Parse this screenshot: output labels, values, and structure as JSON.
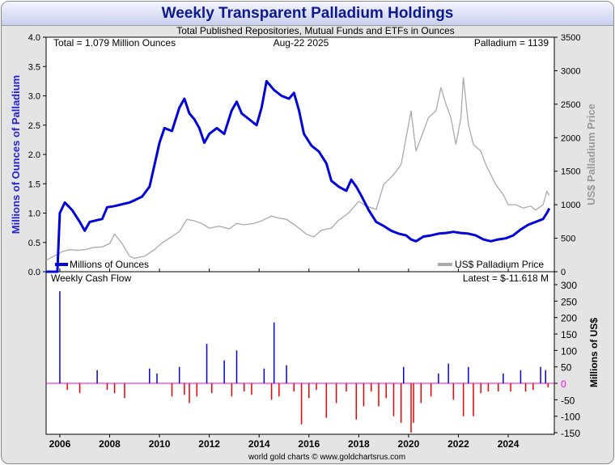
{
  "title": "Weekly Transparent Palladium Holdings",
  "subtitle": "Total Published Repositories, Mutual Funds and ETFs in Ounces",
  "info": {
    "total": "Total = 1.079 Million Ounces",
    "date": "Aug-22  2025",
    "price": "Palladium = 1139",
    "cashflow_title": "Weekly Cash Flow",
    "cashflow_latest": "Latest = $-11.618 M",
    "footer": "world gold charts © www.goldchartsrus.com"
  },
  "colors": {
    "holdings": "#0000dd",
    "price": "#aaaaaa",
    "inflow": "#0000ee",
    "outflow": "#ee0000",
    "zero_label": "#ff00ff"
  },
  "chart_data": [
    {
      "type": "line",
      "title": "Weekly Transparent Palladium Holdings",
      "ylabel": "Millions of Ounces of Palladium",
      "y2label": "US$ Palladium Price",
      "ylim": [
        0,
        4.0
      ],
      "y2lim": [
        0,
        3500
      ],
      "xlim": [
        2005.45,
        2025.85
      ],
      "x_ticks": [
        "2006",
        "2008",
        "2010",
        "2012",
        "2014",
        "2016",
        "2018",
        "2020",
        "2022",
        "2024"
      ],
      "y_ticks": [
        "0.0",
        "0.5",
        "1.0",
        "1.5",
        "2.0",
        "2.5",
        "3.0",
        "3.5",
        "4.0"
      ],
      "y2_ticks": [
        "0",
        "500",
        "1000",
        "1500",
        "2000",
        "2500",
        "3000",
        "3500"
      ],
      "legend": [
        "Millions of Ounces",
        "US$ Palladium Price"
      ],
      "series": [
        {
          "name": "Millions of Ounces",
          "axis": "left",
          "points": [
            [
              2005.45,
              0.0
            ],
            [
              2005.9,
              0.0
            ],
            [
              2006.0,
              1.0
            ],
            [
              2006.2,
              1.18
            ],
            [
              2006.5,
              1.05
            ],
            [
              2006.8,
              0.85
            ],
            [
              2007.0,
              0.7
            ],
            [
              2007.2,
              0.85
            ],
            [
              2007.5,
              0.88
            ],
            [
              2007.7,
              0.9
            ],
            [
              2007.9,
              1.1
            ],
            [
              2008.2,
              1.12
            ],
            [
              2008.5,
              1.15
            ],
            [
              2008.8,
              1.18
            ],
            [
              2009.0,
              1.22
            ],
            [
              2009.3,
              1.28
            ],
            [
              2009.6,
              1.45
            ],
            [
              2009.8,
              1.82
            ],
            [
              2010.0,
              2.2
            ],
            [
              2010.2,
              2.45
            ],
            [
              2010.5,
              2.4
            ],
            [
              2010.8,
              2.8
            ],
            [
              2011.0,
              2.95
            ],
            [
              2011.2,
              2.7
            ],
            [
              2011.4,
              2.6
            ],
            [
              2011.6,
              2.45
            ],
            [
              2011.8,
              2.2
            ],
            [
              2012.0,
              2.35
            ],
            [
              2012.3,
              2.45
            ],
            [
              2012.6,
              2.35
            ],
            [
              2012.9,
              2.75
            ],
            [
              2013.1,
              2.9
            ],
            [
              2013.3,
              2.7
            ],
            [
              2013.6,
              2.6
            ],
            [
              2013.9,
              2.5
            ],
            [
              2014.1,
              2.8
            ],
            [
              2014.3,
              3.25
            ],
            [
              2014.6,
              3.1
            ],
            [
              2014.9,
              3.0
            ],
            [
              2015.2,
              2.95
            ],
            [
              2015.4,
              3.05
            ],
            [
              2015.6,
              2.75
            ],
            [
              2015.8,
              2.35
            ],
            [
              2016.1,
              2.15
            ],
            [
              2016.4,
              2.05
            ],
            [
              2016.7,
              1.85
            ],
            [
              2016.9,
              1.55
            ],
            [
              2017.2,
              1.45
            ],
            [
              2017.5,
              1.38
            ],
            [
              2017.7,
              1.57
            ],
            [
              2017.9,
              1.45
            ],
            [
              2018.1,
              1.3
            ],
            [
              2018.4,
              1.05
            ],
            [
              2018.7,
              0.85
            ],
            [
              2019.0,
              0.78
            ],
            [
              2019.3,
              0.7
            ],
            [
              2019.6,
              0.65
            ],
            [
              2019.9,
              0.62
            ],
            [
              2020.1,
              0.55
            ],
            [
              2020.3,
              0.52
            ],
            [
              2020.6,
              0.6
            ],
            [
              2020.9,
              0.62
            ],
            [
              2021.2,
              0.65
            ],
            [
              2021.5,
              0.66
            ],
            [
              2021.8,
              0.68
            ],
            [
              2022.1,
              0.66
            ],
            [
              2022.4,
              0.65
            ],
            [
              2022.7,
              0.62
            ],
            [
              2023.0,
              0.55
            ],
            [
              2023.3,
              0.52
            ],
            [
              2023.6,
              0.55
            ],
            [
              2023.9,
              0.57
            ],
            [
              2024.2,
              0.62
            ],
            [
              2024.5,
              0.72
            ],
            [
              2024.8,
              0.8
            ],
            [
              2025.1,
              0.85
            ],
            [
              2025.4,
              0.9
            ],
            [
              2025.55,
              1.0
            ],
            [
              2025.65,
              1.08
            ]
          ]
        },
        {
          "name": "US$ Palladium Price",
          "axis": "right",
          "points": [
            [
              2005.45,
              170
            ],
            [
              2005.8,
              240
            ],
            [
              2006.1,
              300
            ],
            [
              2006.4,
              330
            ],
            [
              2006.7,
              320
            ],
            [
              2007.0,
              330
            ],
            [
              2007.3,
              360
            ],
            [
              2007.7,
              370
            ],
            [
              2008.0,
              420
            ],
            [
              2008.2,
              560
            ],
            [
              2008.5,
              420
            ],
            [
              2008.8,
              230
            ],
            [
              2009.0,
              200
            ],
            [
              2009.4,
              230
            ],
            [
              2009.8,
              330
            ],
            [
              2010.1,
              430
            ],
            [
              2010.4,
              500
            ],
            [
              2010.8,
              600
            ],
            [
              2011.1,
              780
            ],
            [
              2011.4,
              760
            ],
            [
              2011.7,
              720
            ],
            [
              2012.0,
              650
            ],
            [
              2012.4,
              680
            ],
            [
              2012.8,
              640
            ],
            [
              2013.1,
              720
            ],
            [
              2013.4,
              700
            ],
            [
              2013.8,
              720
            ],
            [
              2014.1,
              760
            ],
            [
              2014.5,
              830
            ],
            [
              2014.8,
              800
            ],
            [
              2015.1,
              780
            ],
            [
              2015.5,
              680
            ],
            [
              2015.9,
              560
            ],
            [
              2016.2,
              520
            ],
            [
              2016.5,
              620
            ],
            [
              2016.9,
              650
            ],
            [
              2017.2,
              770
            ],
            [
              2017.6,
              880
            ],
            [
              2018.0,
              1050
            ],
            [
              2018.3,
              980
            ],
            [
              2018.7,
              930
            ],
            [
              2019.0,
              1300
            ],
            [
              2019.4,
              1450
            ],
            [
              2019.7,
              1600
            ],
            [
              2019.95,
              2100
            ],
            [
              2020.1,
              2400
            ],
            [
              2020.3,
              1800
            ],
            [
              2020.5,
              2000
            ],
            [
              2020.8,
              2300
            ],
            [
              2021.1,
              2400
            ],
            [
              2021.3,
              2750
            ],
            [
              2021.5,
              2500
            ],
            [
              2021.7,
              2300
            ],
            [
              2021.9,
              1900
            ],
            [
              2022.1,
              2300
            ],
            [
              2022.2,
              2900
            ],
            [
              2022.4,
              2200
            ],
            [
              2022.6,
              1900
            ],
            [
              2022.9,
              1800
            ],
            [
              2023.1,
              1600
            ],
            [
              2023.3,
              1450
            ],
            [
              2023.5,
              1300
            ],
            [
              2023.8,
              1150
            ],
            [
              2024.0,
              1000
            ],
            [
              2024.3,
              1000
            ],
            [
              2024.6,
              950
            ],
            [
              2024.9,
              980
            ],
            [
              2025.1,
              920
            ],
            [
              2025.4,
              1000
            ],
            [
              2025.55,
              1200
            ],
            [
              2025.65,
              1139
            ]
          ]
        }
      ]
    },
    {
      "type": "bar",
      "title": "Weekly Cash Flow",
      "ylabel": "Millions of US$",
      "ylim": [
        -150,
        300
      ],
      "y_ticks": [
        "300",
        "250",
        "200",
        "150",
        "100",
        "50",
        "0",
        "-50",
        "-100",
        "-150"
      ],
      "x_ticks": [
        "2006",
        "2008",
        "2010",
        "2012",
        "2014",
        "2016",
        "2018",
        "2020",
        "2022",
        "2024"
      ],
      "series": [
        {
          "name": "Weekly Cash Flow",
          "points": [
            [
              2006.0,
              280
            ],
            [
              2006.3,
              -20
            ],
            [
              2006.8,
              -30
            ],
            [
              2007.5,
              40
            ],
            [
              2007.9,
              -20
            ],
            [
              2008.2,
              -30
            ],
            [
              2008.6,
              -45
            ],
            [
              2009.6,
              45
            ],
            [
              2009.9,
              30
            ],
            [
              2010.5,
              -40
            ],
            [
              2010.8,
              50
            ],
            [
              2011.0,
              -35
            ],
            [
              2011.2,
              -60
            ],
            [
              2011.5,
              -40
            ],
            [
              2011.9,
              120
            ],
            [
              2012.1,
              -30
            ],
            [
              2012.6,
              70
            ],
            [
              2012.9,
              -40
            ],
            [
              2013.1,
              100
            ],
            [
              2013.4,
              -25
            ],
            [
              2013.7,
              -35
            ],
            [
              2014.2,
              45
            ],
            [
              2014.5,
              -50
            ],
            [
              2014.6,
              185
            ],
            [
              2014.8,
              -40
            ],
            [
              2015.1,
              55
            ],
            [
              2015.4,
              -25
            ],
            [
              2015.7,
              -125
            ],
            [
              2016.0,
              -45
            ],
            [
              2016.3,
              -20
            ],
            [
              2016.7,
              -105
            ],
            [
              2017.1,
              -60
            ],
            [
              2017.5,
              -25
            ],
            [
              2017.9,
              -110
            ],
            [
              2018.2,
              -70
            ],
            [
              2018.5,
              -25
            ],
            [
              2018.8,
              -70
            ],
            [
              2019.1,
              -45
            ],
            [
              2019.4,
              -100
            ],
            [
              2019.7,
              -120
            ],
            [
              2019.8,
              50
            ],
            [
              2020.1,
              -150
            ],
            [
              2020.2,
              -120
            ],
            [
              2020.5,
              -60
            ],
            [
              2020.9,
              -40
            ],
            [
              2021.2,
              30
            ],
            [
              2021.6,
              60
            ],
            [
              2021.8,
              -50
            ],
            [
              2022.2,
              -100
            ],
            [
              2022.4,
              50
            ],
            [
              2022.6,
              -100
            ],
            [
              2022.9,
              -30
            ],
            [
              2023.2,
              -25
            ],
            [
              2023.6,
              -25
            ],
            [
              2023.8,
              30
            ],
            [
              2024.1,
              -25
            ],
            [
              2024.5,
              40
            ],
            [
              2024.7,
              -25
            ],
            [
              2025.0,
              -20
            ],
            [
              2025.3,
              50
            ],
            [
              2025.5,
              40
            ],
            [
              2025.6,
              -12
            ]
          ]
        }
      ]
    }
  ]
}
